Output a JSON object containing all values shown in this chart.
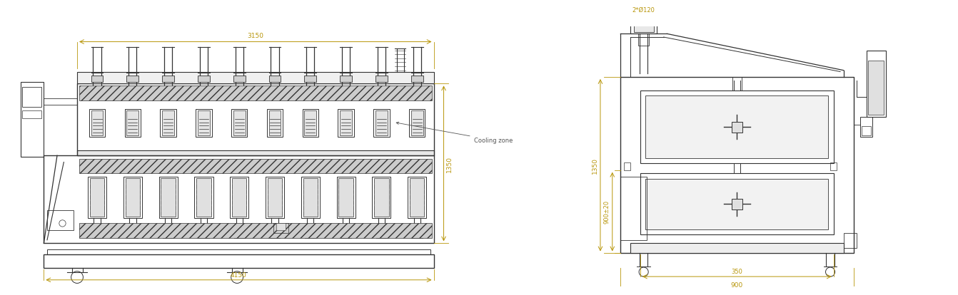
{
  "bg_color": "#ffffff",
  "lc": "#333333",
  "dc": "#b8960a",
  "tc": "#b8960a",
  "ac": "#555555",
  "fig_width": 14.16,
  "fig_height": 3.91,
  "dim_3150": "3150",
  "dim_4150": "4150",
  "dim_1350_main": "1350",
  "cooling_zone": "Cooling zone",
  "dim_2x120": "2*Ø120",
  "dim_1350_right": "1350",
  "dim_900pm": "900±20",
  "dim_350": "350",
  "dim_900": "900"
}
